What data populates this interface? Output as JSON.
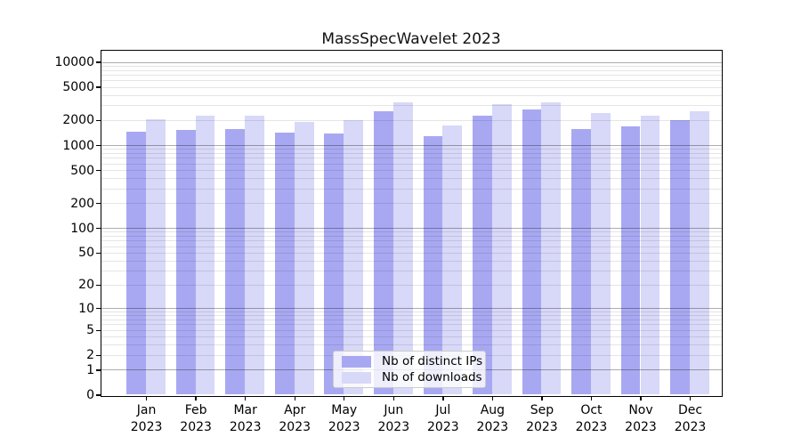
{
  "title": "MassSpecWavelet 2023",
  "chart_data": {
    "type": "bar",
    "title": "MassSpecWavelet 2023",
    "scale": "pseudo-log (log1p), y = log(1+v)",
    "grid": "on",
    "legend_position": "inside bottom-center",
    "xlabel": "",
    "ylabel": "",
    "categories": [
      "Jan 2023",
      "Feb 2023",
      "Mar 2023",
      "Apr 2023",
      "May 2023",
      "Jun 2023",
      "Jul 2023",
      "Aug 2023",
      "Sep 2023",
      "Oct 2023",
      "Nov 2023",
      "Dec 2023"
    ],
    "month_line1": [
      "Jan",
      "Feb",
      "Mar",
      "Apr",
      "May",
      "Jun",
      "Jul",
      "Aug",
      "Sep",
      "Oct",
      "Nov",
      "Dec"
    ],
    "month_line2": "2023",
    "series": [
      {
        "name": "Nb of distinct IPs",
        "color": "#a8a8f2",
        "values": [
          1460,
          1530,
          1570,
          1400,
          1370,
          2580,
          1270,
          2280,
          2650,
          1540,
          1660,
          1970
        ]
      },
      {
        "name": "Nb of downloads",
        "color": "#d8d8f8",
        "values": [
          2020,
          2240,
          2280,
          1880,
          1970,
          3300,
          1700,
          3070,
          3300,
          2430,
          2280,
          2580
        ]
      }
    ],
    "y_ticks": [
      10000,
      5000,
      2000,
      1000,
      500,
      200,
      100,
      50,
      20,
      10,
      5,
      2,
      1,
      0
    ],
    "y_major_gridlines": [
      1,
      10,
      100,
      1000,
      10000
    ],
    "ylim": [
      0,
      13800
    ],
    "colors": {
      "distinct_ips": "#a8a8f2",
      "downloads": "#d8d8f8",
      "grid_major": "#aaaaaa",
      "grid_minor": "#e6e6e6",
      "frame": "#000000"
    }
  }
}
